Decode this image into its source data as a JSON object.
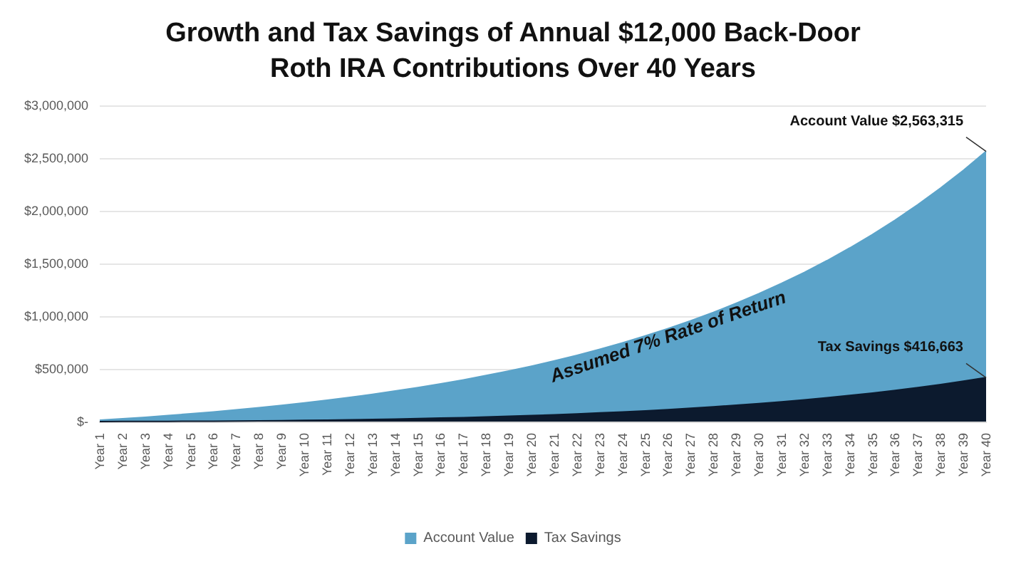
{
  "chart_data": {
    "type": "area",
    "title": "Growth and Tax Savings of Annual $12,000 Back-Door\nRoth IRA Contributions Over 40 Years",
    "categories": [
      "Year 1",
      "Year 2",
      "Year 3",
      "Year 4",
      "Year 5",
      "Year 6",
      "Year 7",
      "Year 8",
      "Year 9",
      "Year 10",
      "Year 11",
      "Year 12",
      "Year 13",
      "Year 14",
      "Year 15",
      "Year 16",
      "Year 17",
      "Year 18",
      "Year 19",
      "Year 20",
      "Year 21",
      "Year 22",
      "Year 23",
      "Year 24",
      "Year 25",
      "Year 26",
      "Year 27",
      "Year 28",
      "Year 29",
      "Year 30",
      "Year 31",
      "Year 32",
      "Year 33",
      "Year 34",
      "Year 35",
      "Year 36",
      "Year 37",
      "Year 38",
      "Year 39",
      "Year 40"
    ],
    "series": [
      {
        "name": "Account Value",
        "color": "#5ba3c9",
        "values": [
          13000,
          27000,
          41000,
          57000,
          74000,
          92000,
          111000,
          132000,
          154000,
          177000,
          203000,
          230000,
          259000,
          290000,
          323000,
          358000,
          396000,
          437000,
          480000,
          526000,
          576000,
          629000,
          686000,
          747000,
          812000,
          882000,
          956000,
          1036000,
          1122000,
          1213000,
          1311000,
          1415000,
          1527000,
          1647000,
          1775000,
          1912000,
          2059000,
          2216000,
          2384000,
          2563315
        ]
      },
      {
        "name": "Tax Savings",
        "color": "#0c1a2e",
        "values": [
          0,
          1000,
          1000,
          2000,
          3000,
          4000,
          5000,
          7000,
          9000,
          11000,
          14000,
          17000,
          21000,
          24000,
          29000,
          33000,
          38000,
          44000,
          50000,
          57000,
          65000,
          73000,
          82000,
          92000,
          102000,
          114000,
          126000,
          140000,
          155000,
          171000,
          188000,
          206000,
          226000,
          248000,
          271000,
          296000,
          323000,
          352000,
          383000,
          416663
        ]
      }
    ],
    "ylim": [
      0,
      3000000
    ],
    "yticks": [
      {
        "value": 0,
        "label": "$-"
      },
      {
        "value": 500000,
        "label": "$500,000"
      },
      {
        "value": 1000000,
        "label": "$1,000,000"
      },
      {
        "value": 1500000,
        "label": "$1,500,000"
      },
      {
        "value": 2000000,
        "label": "$2,000,000"
      },
      {
        "value": 2500000,
        "label": "$2,500,000"
      },
      {
        "value": 3000000,
        "label": "$3,000,000"
      }
    ],
    "grid": "y",
    "legend": "bottom",
    "marker": "none",
    "annotations": [
      {
        "text": "Account Value $2,563,315",
        "x": "Year 40",
        "y": 2563315
      },
      {
        "text": "Tax Savings $416,663",
        "x": "Year 40",
        "y": 416663
      },
      "Assumed 7% Rate of Return"
    ]
  }
}
